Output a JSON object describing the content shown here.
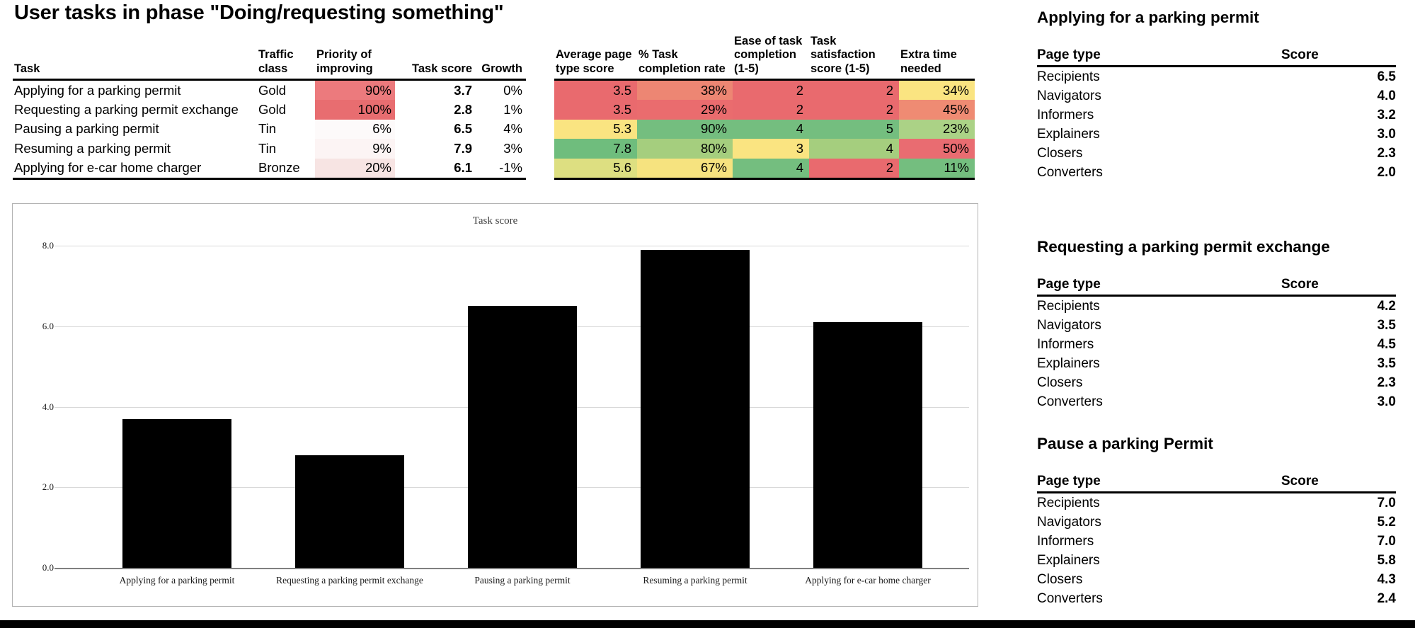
{
  "page_title": "User tasks in phase \"Doing/requesting something\"",
  "main_table": {
    "left": {
      "headers": [
        "Task",
        "Traffic\nclass",
        "Priority of\nimproving",
        "Task score",
        "Growth"
      ],
      "rows": [
        {
          "task": "Applying for a parking permit",
          "traffic_class": "Gold",
          "priority": "90%",
          "priority_bg": "#EC7A7D",
          "task_score": "3.7",
          "growth": "0%"
        },
        {
          "task": "Requesting a parking permit exchange",
          "traffic_class": "Gold",
          "priority": "100%",
          "priority_bg": "#E86D70",
          "task_score": "2.8",
          "growth": "1%"
        },
        {
          "task": "Pausing a parking permit",
          "traffic_class": "Tin",
          "priority": "6%",
          "priority_bg": "#FDFAFA",
          "task_score": "6.5",
          "growth": "4%"
        },
        {
          "task": "Resuming a parking permit",
          "traffic_class": "Tin",
          "priority": "9%",
          "priority_bg": "#FCF4F4",
          "task_score": "7.9",
          "growth": "3%"
        },
        {
          "task": "Applying for  e-car home charger",
          "traffic_class": "Bronze",
          "priority": "20%",
          "priority_bg": "#F7E4E3",
          "task_score": "6.1",
          "growth": "-1%"
        }
      ]
    },
    "heatmap": {
      "headers": [
        "Average page\ntype score",
        "% Task\ncompletion rate",
        "Ease of task\ncompletion\n(1-5)",
        "Task\nsatisfaction\nscore (1-5)",
        "Extra time\nneeded"
      ],
      "rows": [
        [
          {
            "text": "3.5",
            "bg": "#E96A6E"
          },
          {
            "text": "38%",
            "bg": "#ED8673"
          },
          {
            "text": "2",
            "bg": "#E96A6E"
          },
          {
            "text": "2",
            "bg": "#E96A6E"
          },
          {
            "text": "34%",
            "bg": "#FAE481"
          }
        ],
        [
          {
            "text": "3.5",
            "bg": "#E96A6E"
          },
          {
            "text": "29%",
            "bg": "#EA6C6E"
          },
          {
            "text": "2",
            "bg": "#E96A6E"
          },
          {
            "text": "2",
            "bg": "#E96A6E"
          },
          {
            "text": "45%",
            "bg": "#EF8B73"
          }
        ],
        [
          {
            "text": "5.3",
            "bg": "#FAE481"
          },
          {
            "text": "90%",
            "bg": "#74BE7F"
          },
          {
            "text": "4",
            "bg": "#74BE7F"
          },
          {
            "text": "5",
            "bg": "#74BE7F"
          },
          {
            "text": "23%",
            "bg": "#ABD286"
          }
        ],
        [
          {
            "text": "7.8",
            "bg": "#6FBD7D"
          },
          {
            "text": "80%",
            "bg": "#A5CE7E"
          },
          {
            "text": "3",
            "bg": "#FAE481"
          },
          {
            "text": "4",
            "bg": "#A5CE7E"
          },
          {
            "text": "50%",
            "bg": "#E96C71"
          }
        ],
        [
          {
            "text": "5.6",
            "bg": "#DDDF81"
          },
          {
            "text": "67%",
            "bg": "#F6E37F"
          },
          {
            "text": "4",
            "bg": "#74BE7F"
          },
          {
            "text": "2",
            "bg": "#E96A6E"
          },
          {
            "text": "11%",
            "bg": "#74BE7F"
          }
        ]
      ]
    },
    "scale_colors": {
      "low": "#E96A6E",
      "mid": "#FAE481",
      "high": "#74BE7F"
    }
  },
  "chart_data": {
    "type": "bar",
    "title": "Task score",
    "categories": [
      "Applying for a parking permit",
      "Requesting a parking permit exchange",
      "Pausing a parking permit",
      "Resuming a parking permit",
      "Applying for  e-car home charger"
    ],
    "values": [
      3.7,
      2.8,
      6.5,
      7.9,
      6.1
    ],
    "bar_color": "#000000",
    "xlabel": "",
    "ylabel": "",
    "ylim": [
      0,
      8
    ],
    "ytick_labels": [
      "0.0",
      "2.0",
      "4.0",
      "6.0",
      "8.0"
    ],
    "ytick_values": [
      0,
      2,
      4,
      6,
      8
    ],
    "grid": true,
    "legend_position": "none"
  },
  "side_tables": [
    {
      "title": "Applying for a parking permit",
      "col_page_type": "Page type",
      "col_score": "Score",
      "rows": [
        {
          "page_type": "Recipients",
          "score": "6.5"
        },
        {
          "page_type": "Navigators",
          "score": "4.0"
        },
        {
          "page_type": "Informers",
          "score": "3.2"
        },
        {
          "page_type": "Explainers",
          "score": "3.0"
        },
        {
          "page_type": "Closers",
          "score": "2.3"
        },
        {
          "page_type": "Converters",
          "score": "2.0"
        }
      ]
    },
    {
      "title": "Requesting a parking permit exchange",
      "col_page_type": "Page type",
      "col_score": "Score",
      "rows": [
        {
          "page_type": "Recipients",
          "score": "4.2"
        },
        {
          "page_type": "Navigators",
          "score": "3.5"
        },
        {
          "page_type": "Informers",
          "score": "4.5"
        },
        {
          "page_type": "Explainers",
          "score": "3.5"
        },
        {
          "page_type": "Closers",
          "score": "2.3"
        },
        {
          "page_type": "Converters",
          "score": "3.0"
        }
      ]
    },
    {
      "title": "Pause a parking Permit",
      "col_page_type": "Page type",
      "col_score": "Score",
      "rows": [
        {
          "page_type": "Recipients",
          "score": "7.0"
        },
        {
          "page_type": "Navigators",
          "score": "5.2"
        },
        {
          "page_type": "Informers",
          "score": "7.0"
        },
        {
          "page_type": "Explainers",
          "score": "5.8"
        },
        {
          "page_type": "Closers",
          "score": "4.3"
        },
        {
          "page_type": "Converters",
          "score": "2.4"
        }
      ]
    }
  ]
}
